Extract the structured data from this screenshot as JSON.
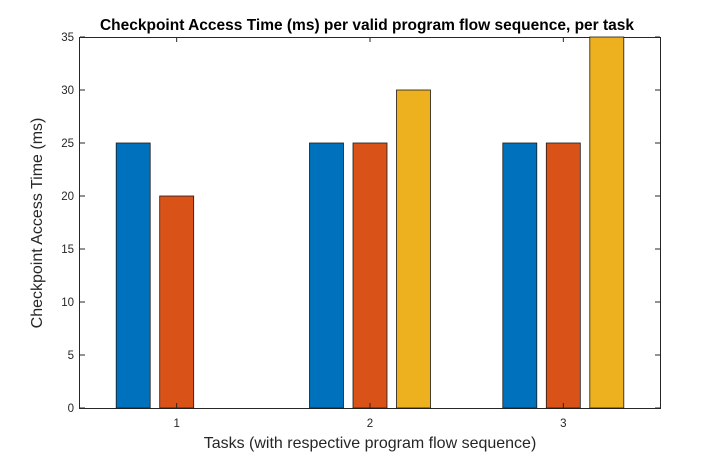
{
  "chart_data": {
    "type": "bar",
    "title": "Checkpoint Access Time (ms) per valid program flow sequence, per task",
    "xlabel": "Tasks (with respective program flow sequence)",
    "ylabel": "Checkpoint Access Time (ms)",
    "categories": [
      "1",
      "2",
      "3"
    ],
    "ylim": [
      0,
      35
    ],
    "yticks": [
      0,
      5,
      10,
      15,
      20,
      25,
      30,
      35
    ],
    "grid": false,
    "series": [
      {
        "color": "#0072BD",
        "values": [
          25,
          25,
          25
        ]
      },
      {
        "color": "#D95319",
        "values": [
          20,
          25,
          25
        ]
      },
      {
        "color": "#EDB120",
        "values": [
          null,
          30,
          35
        ]
      }
    ]
  }
}
